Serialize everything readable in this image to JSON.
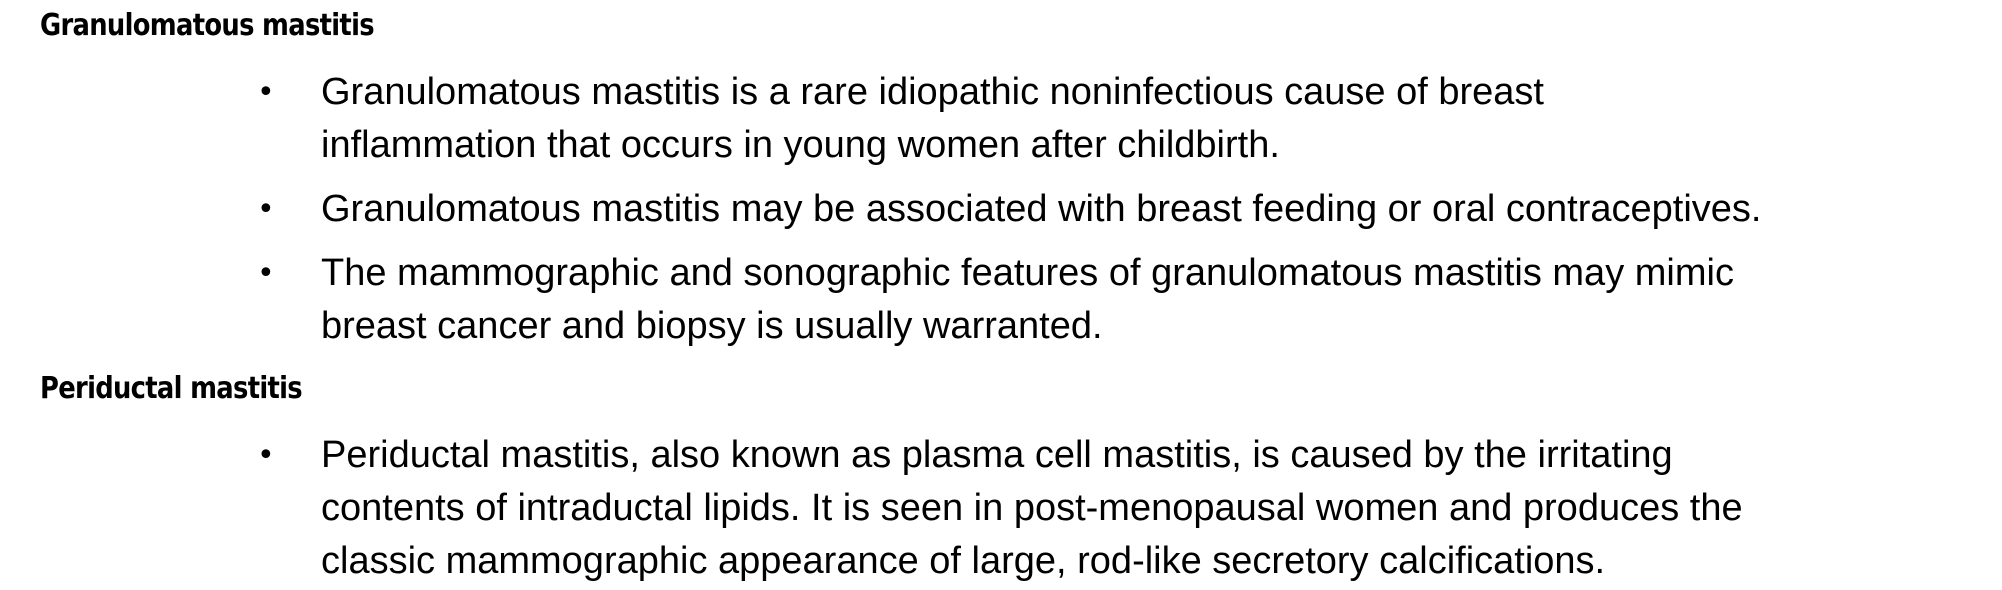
{
  "sections": [
    {
      "heading": "Granulomatous mastitis",
      "bullet_symbol": "•",
      "items": [
        {
          "lines": [
            "Granulomatous mastitis is a rare idiopathic noninfectious cause of breast",
            "inflammation that occurs in young women after childbirth."
          ]
        },
        {
          "lines": [
            "Granulomatous mastitis may be associated with breast feeding or oral contraceptives."
          ]
        },
        {
          "lines": [
            "The mammographic and sonographic features of granulomatous mastitis may mimic",
            "breast cancer and biopsy is usually warranted."
          ]
        }
      ]
    },
    {
      "heading": "Periductal mastitis",
      "bullet_symbol": "•",
      "items": [
        {
          "lines": [
            "Periductal mastitis, also known as plasma cell mastitis, is caused by the irritating",
            "contents of intraductal lipids. It is seen in post-menopausal women and produces the",
            "classic mammographic appearance of large, rod-like secretory calcifications."
          ]
        }
      ]
    }
  ]
}
